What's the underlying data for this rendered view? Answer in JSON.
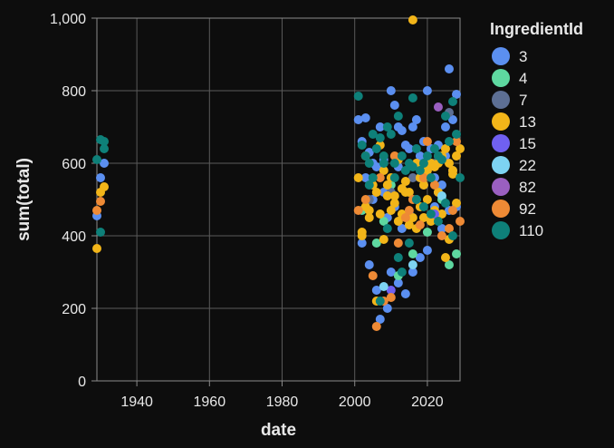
{
  "chart_data": {
    "type": "scatter",
    "title": "",
    "xlabel": "date",
    "ylabel": "sum(total)",
    "xlim": [
      1929,
      2029
    ],
    "ylim": [
      0,
      1000
    ],
    "x_ticks": [
      1940,
      1960,
      1980,
      2000,
      2020
    ],
    "y_ticks": [
      0,
      200,
      400,
      600,
      800,
      1000
    ],
    "x_tick_labels": [
      "1940",
      "1960",
      "1980",
      "2000",
      "2020"
    ],
    "y_tick_labels": [
      "0",
      "200",
      "400",
      "600",
      "800",
      "1,000"
    ],
    "grid": true,
    "legend": {
      "title": "IngredientId",
      "position": "right",
      "entries": [
        {
          "name": "3",
          "color": "#5b8ff0"
        },
        {
          "name": "4",
          "color": "#5ed8a0"
        },
        {
          "name": "7",
          "color": "#5d6f94"
        },
        {
          "name": "13",
          "color": "#f2b519"
        },
        {
          "name": "15",
          "color": "#7060f0"
        },
        {
          "name": "22",
          "color": "#7dd3f2"
        },
        {
          "name": "82",
          "color": "#9a5fc0"
        },
        {
          "name": "92",
          "color": "#ee8a35"
        },
        {
          "name": "110",
          "color": "#0e8079"
        }
      ]
    },
    "series": [
      {
        "name": "3",
        "points": [
          [
            1930,
            560
          ],
          [
            1931,
            600
          ],
          [
            1929,
            455
          ],
          [
            2001,
            720
          ],
          [
            2003,
            725
          ],
          [
            2002,
            660
          ],
          [
            2004,
            630
          ],
          [
            2005,
            600
          ],
          [
            2006,
            590
          ],
          [
            2007,
            700
          ],
          [
            2008,
            610
          ],
          [
            2010,
            800
          ],
          [
            2011,
            760
          ],
          [
            2012,
            700
          ],
          [
            2013,
            690
          ],
          [
            2014,
            650
          ],
          [
            2015,
            640
          ],
          [
            2016,
            700
          ],
          [
            2017,
            720
          ],
          [
            2018,
            620
          ],
          [
            2019,
            660
          ],
          [
            2020,
            800
          ],
          [
            2021,
            640
          ],
          [
            2022,
            560
          ],
          [
            2023,
            520
          ],
          [
            2024,
            540
          ],
          [
            2025,
            620
          ],
          [
            2026,
            860
          ],
          [
            2027,
            720
          ],
          [
            2028,
            790
          ],
          [
            2002,
            380
          ],
          [
            2004,
            320
          ],
          [
            2006,
            250
          ],
          [
            2007,
            170
          ],
          [
            2009,
            200
          ],
          [
            2010,
            300
          ],
          [
            2012,
            270
          ],
          [
            2014,
            240
          ],
          [
            2016,
            300
          ],
          [
            2018,
            340
          ],
          [
            2020,
            360
          ],
          [
            2022,
            480
          ],
          [
            2024,
            420
          ],
          [
            2026,
            470
          ],
          [
            2003,
            560
          ],
          [
            2008,
            520
          ],
          [
            2011,
            480
          ],
          [
            2013,
            420
          ],
          [
            2015,
            460
          ],
          [
            2017,
            500
          ],
          [
            2019,
            540
          ],
          [
            2021,
            600
          ],
          [
            2023,
            650
          ],
          [
            2025,
            700
          ],
          [
            2027,
            580
          ],
          [
            2028,
            480
          ],
          [
            2005,
            500
          ],
          [
            2009,
            450
          ],
          [
            2012,
            590
          ],
          [
            2018,
            560
          ]
        ]
      },
      {
        "name": "4",
        "points": [
          [
            2002,
            470
          ],
          [
            2006,
            380
          ],
          [
            2008,
            440
          ],
          [
            2012,
            290
          ],
          [
            2016,
            350
          ],
          [
            2020,
            410
          ],
          [
            2024,
            500
          ],
          [
            2026,
            320
          ],
          [
            2028,
            350
          ],
          [
            2010,
            540
          ]
        ]
      },
      {
        "name": "7",
        "points": [
          [
            2004,
            500
          ],
          [
            2010,
            520
          ],
          [
            2016,
            560
          ],
          [
            2022,
            600
          ],
          [
            2026,
            740
          ]
        ]
      },
      {
        "name": "13",
        "points": [
          [
            1930,
            520
          ],
          [
            1931,
            535
          ],
          [
            1929,
            365
          ],
          [
            2001,
            560
          ],
          [
            2002,
            410
          ],
          [
            2003,
            480
          ],
          [
            2004,
            470
          ],
          [
            2005,
            540
          ],
          [
            2006,
            520
          ],
          [
            2007,
            460
          ],
          [
            2008,
            580
          ],
          [
            2009,
            540
          ],
          [
            2010,
            560
          ],
          [
            2011,
            490
          ],
          [
            2012,
            610
          ],
          [
            2013,
            530
          ],
          [
            2014,
            550
          ],
          [
            2015,
            520
          ],
          [
            2016,
            995
          ],
          [
            2017,
            600
          ],
          [
            2018,
            560
          ],
          [
            2019,
            540
          ],
          [
            2020,
            580
          ],
          [
            2021,
            600
          ],
          [
            2022,
            590
          ],
          [
            2023,
            600
          ],
          [
            2024,
            620
          ],
          [
            2025,
            640
          ],
          [
            2026,
            600
          ],
          [
            2027,
            580
          ],
          [
            2028,
            620
          ],
          [
            2029,
            640
          ],
          [
            2002,
            400
          ],
          [
            2004,
            450
          ],
          [
            2006,
            220
          ],
          [
            2008,
            390
          ],
          [
            2010,
            470
          ],
          [
            2012,
            440
          ],
          [
            2014,
            520
          ],
          [
            2016,
            450
          ],
          [
            2018,
            480
          ],
          [
            2020,
            500
          ],
          [
            2022,
            470
          ],
          [
            2024,
            460
          ],
          [
            2026,
            390
          ],
          [
            2028,
            490
          ],
          [
            2003,
            620
          ],
          [
            2007,
            650
          ],
          [
            2011,
            510
          ],
          [
            2015,
            430
          ],
          [
            2019,
            450
          ],
          [
            2023,
            520
          ],
          [
            2027,
            570
          ],
          [
            2009,
            510
          ],
          [
            2013,
            460
          ],
          [
            2017,
            420
          ],
          [
            2021,
            440
          ],
          [
            2025,
            340
          ]
        ]
      },
      {
        "name": "15",
        "points": [
          [
            2010,
            250
          ],
          [
            2022,
            460
          ]
        ]
      },
      {
        "name": "22",
        "points": [
          [
            2008,
            260
          ],
          [
            2016,
            320
          ],
          [
            2024,
            510
          ]
        ]
      },
      {
        "name": "82",
        "points": [
          [
            2023,
            755
          ]
        ]
      },
      {
        "name": "92",
        "points": [
          [
            1930,
            495
          ],
          [
            1929,
            470
          ],
          [
            2001,
            470
          ],
          [
            2003,
            500
          ],
          [
            2005,
            290
          ],
          [
            2006,
            150
          ],
          [
            2008,
            220
          ],
          [
            2010,
            230
          ],
          [
            2012,
            380
          ],
          [
            2014,
            450
          ],
          [
            2016,
            500
          ],
          [
            2018,
            430
          ],
          [
            2020,
            660
          ],
          [
            2022,
            540
          ],
          [
            2024,
            400
          ],
          [
            2026,
            420
          ],
          [
            2028,
            660
          ],
          [
            2029,
            440
          ],
          [
            2007,
            560
          ],
          [
            2011,
            620
          ],
          [
            2015,
            470
          ],
          [
            2019,
            560
          ],
          [
            2023,
            620
          ],
          [
            2027,
            470
          ]
        ]
      },
      {
        "name": "110",
        "points": [
          [
            1930,
            665
          ],
          [
            1931,
            640
          ],
          [
            1929,
            610
          ],
          [
            1931,
            660
          ],
          [
            1930,
            410
          ],
          [
            2001,
            785
          ],
          [
            2002,
            650
          ],
          [
            2003,
            620
          ],
          [
            2004,
            600
          ],
          [
            2005,
            680
          ],
          [
            2006,
            640
          ],
          [
            2007,
            670
          ],
          [
            2008,
            620
          ],
          [
            2009,
            700
          ],
          [
            2010,
            680
          ],
          [
            2011,
            600
          ],
          [
            2012,
            730
          ],
          [
            2013,
            620
          ],
          [
            2014,
            580
          ],
          [
            2015,
            600
          ],
          [
            2016,
            780
          ],
          [
            2017,
            640
          ],
          [
            2018,
            580
          ],
          [
            2019,
            600
          ],
          [
            2020,
            620
          ],
          [
            2021,
            560
          ],
          [
            2022,
            640
          ],
          [
            2023,
            620
          ],
          [
            2024,
            610
          ],
          [
            2025,
            730
          ],
          [
            2026,
            660
          ],
          [
            2027,
            770
          ],
          [
            2028,
            680
          ],
          [
            2029,
            560
          ],
          [
            2005,
            560
          ],
          [
            2007,
            220
          ],
          [
            2009,
            420
          ],
          [
            2011,
            560
          ],
          [
            2013,
            300
          ],
          [
            2015,
            380
          ],
          [
            2017,
            500
          ],
          [
            2019,
            480
          ],
          [
            2021,
            460
          ],
          [
            2023,
            440
          ],
          [
            2025,
            490
          ],
          [
            2027,
            400
          ],
          [
            2004,
            540
          ],
          [
            2008,
            600
          ],
          [
            2012,
            340
          ],
          [
            2016,
            590
          ]
        ]
      }
    ]
  }
}
